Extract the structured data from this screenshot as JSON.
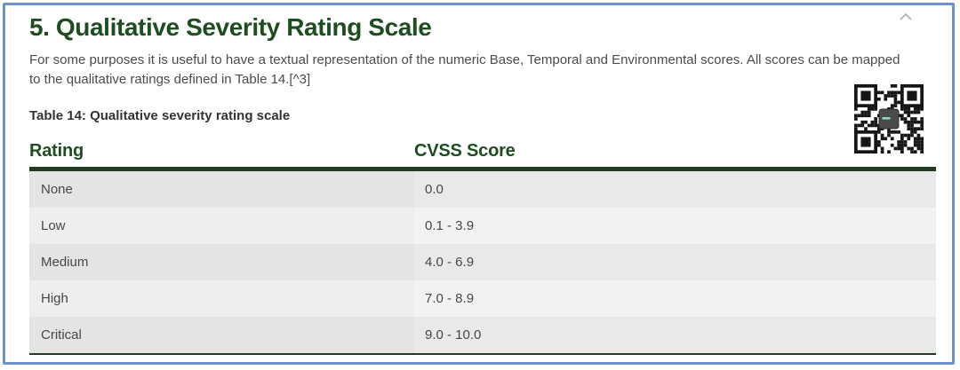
{
  "colors": {
    "frame_border_blue": "#6b92cc",
    "heading_green": "#1e4e20",
    "table_rule_green": "#213c21",
    "row_stripe_dark": "#e4e4e4",
    "row_stripe_light": "#eeeeee"
  },
  "section": {
    "title": "5. Qualitative Severity Rating Scale",
    "intro_lines": [
      "For some purposes it is useful to have a textual representation of the numeric Base, Temporal and Environmental scores. All scores can be mapped",
      "to the qualitative ratings defined in Table 14.[^3]"
    ]
  },
  "icons": {
    "collapse": "chevron-up-icon",
    "qr": "qr-code"
  },
  "table": {
    "caption": "Table 14: Qualitative severity rating scale",
    "headers": [
      "Rating",
      "CVSS Score"
    ],
    "rows": [
      [
        "None",
        "0.0"
      ],
      [
        "Low",
        "0.1 - 3.9"
      ],
      [
        "Medium",
        "4.0 - 6.9"
      ],
      [
        "High",
        "7.0 - 8.9"
      ],
      [
        "Critical",
        "9.0 - 10.0"
      ]
    ]
  }
}
